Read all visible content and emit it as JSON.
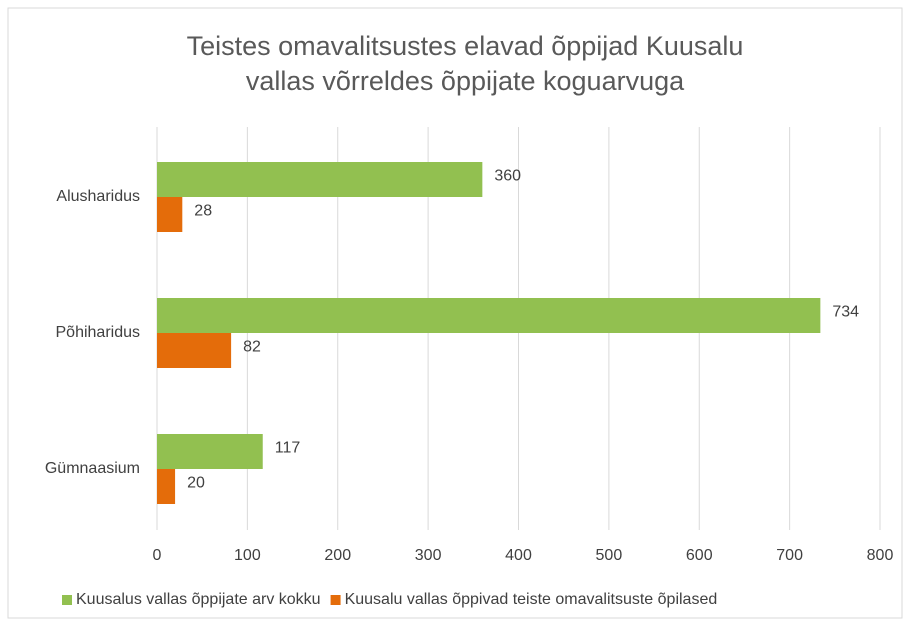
{
  "chart_data": {
    "type": "hbar",
    "title": [
      "Teistes omavalitsustes elavad õppijad Kuusalu",
      "vallas võrreldes õppijate koguarvuga"
    ],
    "categories": [
      "Alusharidus",
      "Põhiharidus",
      "Gümnaasium"
    ],
    "series": [
      {
        "name": "Kuusalus vallas õppijate arv kokku",
        "color": "#92c050",
        "values": [
          360,
          734,
          117
        ]
      },
      {
        "name": "Kuusalu vallas õppivad teiste omavalitsuste õpilased",
        "color": "#e46c0a",
        "values": [
          28,
          82,
          20
        ]
      }
    ],
    "xlim": [
      0,
      800
    ],
    "xticks": [
      0,
      100,
      200,
      300,
      400,
      500,
      600,
      700,
      800
    ],
    "grid": true,
    "legend": "bottom"
  }
}
